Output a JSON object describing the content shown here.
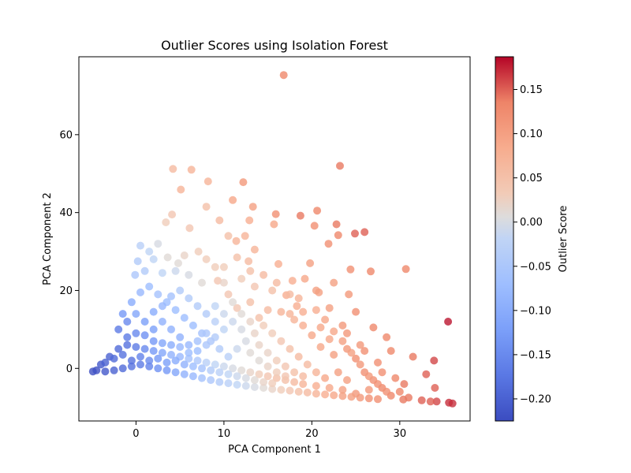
{
  "chart_data": {
    "type": "scatter",
    "title": "Outlier Scores using Isolation Forest",
    "xlabel": "PCA Component 1",
    "ylabel": "PCA Component 2",
    "xlim": [
      -6.5,
      38
    ],
    "ylim": [
      -13.5,
      80
    ],
    "xticks": [
      0,
      10,
      20,
      30
    ],
    "yticks": [
      0,
      20,
      40,
      60
    ],
    "grid": false,
    "colorbar": {
      "label": "Outlier Score",
      "colormap": "coolwarm",
      "range": [
        -0.225,
        0.187
      ],
      "ticks": [
        "-0.20",
        "-0.15",
        "-0.10",
        "-0.05",
        "0.00",
        "0.05",
        "0.10",
        "0.15"
      ],
      "tick_values": [
        -0.2,
        -0.15,
        -0.1,
        -0.05,
        0.0,
        0.05,
        0.1,
        0.15
      ]
    },
    "points": [
      [
        16.8,
        75.3,
        0.13
      ],
      [
        23.2,
        52.0,
        0.14
      ],
      [
        4.2,
        51.2,
        0.06
      ],
      [
        6.3,
        51.0,
        0.07
      ],
      [
        12.2,
        47.8,
        0.11
      ],
      [
        5.1,
        45.9,
        0.07
      ],
      [
        8.2,
        48.0,
        0.07
      ],
      [
        11.0,
        43.2,
        0.09
      ],
      [
        13.3,
        41.5,
        0.1
      ],
      [
        15.9,
        39.6,
        0.12
      ],
      [
        18.7,
        39.2,
        0.14
      ],
      [
        20.6,
        40.5,
        0.13
      ],
      [
        22.8,
        37.0,
        0.14
      ],
      [
        20.3,
        36.6,
        0.12
      ],
      [
        24.9,
        34.6,
        0.15
      ],
      [
        26.0,
        35.0,
        0.15
      ],
      [
        23.0,
        34.2,
        0.13
      ],
      [
        21.9,
        32.0,
        0.12
      ],
      [
        19.8,
        27.0,
        0.1
      ],
      [
        24.4,
        25.4,
        0.12
      ],
      [
        26.7,
        24.9,
        0.13
      ],
      [
        30.7,
        25.5,
        0.13
      ],
      [
        35.5,
        12.0,
        0.18
      ],
      [
        33.9,
        2.0,
        0.16
      ],
      [
        8.0,
        41.5,
        0.05
      ],
      [
        9.5,
        38.0,
        0.06
      ],
      [
        12.9,
        38.0,
        0.08
      ],
      [
        15.7,
        37.0,
        0.09
      ],
      [
        3.4,
        37.5,
        0.03
      ],
      [
        6.1,
        36.0,
        0.04
      ],
      [
        4.1,
        39.5,
        0.04
      ],
      [
        10.5,
        34.0,
        0.05
      ],
      [
        12.4,
        34.0,
        0.07
      ],
      [
        11.4,
        32.7,
        0.07
      ],
      [
        13.5,
        30.5,
        0.07
      ],
      [
        12.8,
        27.5,
        0.06
      ],
      [
        16.2,
        26.8,
        0.08
      ],
      [
        17.8,
        22.5,
        0.08
      ],
      [
        19.2,
        23.0,
        0.09
      ],
      [
        20.5,
        20.0,
        0.1
      ],
      [
        22.5,
        22.0,
        0.1
      ],
      [
        24.2,
        19.0,
        0.11
      ],
      [
        17.1,
        18.8,
        0.08
      ],
      [
        18.3,
        16.0,
        0.08
      ],
      [
        20.8,
        19.5,
        0.1
      ],
      [
        22.0,
        15.5,
        0.1
      ],
      [
        23.5,
        11.0,
        0.11
      ],
      [
        25.0,
        14.5,
        0.12
      ],
      [
        27.0,
        10.5,
        0.13
      ],
      [
        28.5,
        8.0,
        0.13
      ],
      [
        29.0,
        4.5,
        0.13
      ],
      [
        31.5,
        3.0,
        0.14
      ],
      [
        33.0,
        -1.5,
        0.15
      ],
      [
        34.0,
        -5.0,
        0.15
      ],
      [
        35.6,
        -8.8,
        0.17
      ],
      [
        36.0,
        -9.0,
        0.17
      ],
      [
        34.2,
        -8.5,
        0.16
      ],
      [
        30.4,
        -8.0,
        0.14
      ],
      [
        32.5,
        -8.2,
        0.15
      ],
      [
        29.0,
        -7.0,
        0.13
      ],
      [
        30.5,
        -4.0,
        0.14
      ],
      [
        28.0,
        -5.0,
        0.13
      ],
      [
        27.0,
        -3.0,
        0.12
      ],
      [
        26.0,
        -1.0,
        0.12
      ],
      [
        25.0,
        2.5,
        0.12
      ],
      [
        24.0,
        5.0,
        0.11
      ],
      [
        22.5,
        3.5,
        0.1
      ],
      [
        21.0,
        5.5,
        0.09
      ],
      [
        20.0,
        8.5,
        0.09
      ],
      [
        19.0,
        11.0,
        0.08
      ],
      [
        18.0,
        12.5,
        0.07
      ],
      [
        16.5,
        14.5,
        0.07
      ],
      [
        15.0,
        15.0,
        0.06
      ],
      [
        14.0,
        13.0,
        0.05
      ],
      [
        13.0,
        17.0,
        0.05
      ],
      [
        11.5,
        15.5,
        0.04
      ],
      [
        10.5,
        19.0,
        0.04
      ],
      [
        9.3,
        22.5,
        0.04
      ],
      [
        9.0,
        26.0,
        0.03
      ],
      [
        8.0,
        28.0,
        0.03
      ],
      [
        7.1,
        30.0,
        0.03
      ],
      [
        5.5,
        29.0,
        0.02
      ],
      [
        4.8,
        27.0,
        0.01
      ],
      [
        3.6,
        28.5,
        0.01
      ],
      [
        2.5,
        32.0,
        0.0
      ],
      [
        1.5,
        30.0,
        -0.02
      ],
      [
        0.5,
        31.5,
        -0.03
      ],
      [
        2.0,
        28.0,
        -0.02
      ],
      [
        0.2,
        27.5,
        -0.04
      ],
      [
        -0.1,
        24.0,
        -0.05
      ],
      [
        1.0,
        25.0,
        -0.04
      ],
      [
        3.0,
        24.5,
        -0.02
      ],
      [
        4.5,
        25.0,
        -0.01
      ],
      [
        6.0,
        24.0,
        0.0
      ],
      [
        7.5,
        22.0,
        0.01
      ],
      [
        10.0,
        22.0,
        0.02
      ],
      [
        12.0,
        23.0,
        0.03
      ],
      [
        13.5,
        21.0,
        0.04
      ],
      [
        15.5,
        20.0,
        0.05
      ],
      [
        17.5,
        19.0,
        0.06
      ],
      [
        18.5,
        18.0,
        0.07
      ],
      [
        20.5,
        15.0,
        0.08
      ],
      [
        21.5,
        12.5,
        0.09
      ],
      [
        22.5,
        9.5,
        0.09
      ],
      [
        23.5,
        7.0,
        0.1
      ],
      [
        24.5,
        4.0,
        0.1
      ],
      [
        25.5,
        1.0,
        0.11
      ],
      [
        26.5,
        -2.0,
        0.11
      ],
      [
        27.5,
        -4.0,
        0.12
      ],
      [
        28.5,
        -6.0,
        0.12
      ],
      [
        26.5,
        -5.5,
        0.11
      ],
      [
        25.0,
        -6.5,
        0.11
      ],
      [
        23.5,
        -5.5,
        0.1
      ],
      [
        22.0,
        -5.0,
        0.09
      ],
      [
        24.0,
        -3.0,
        0.1
      ],
      [
        23.0,
        -1.0,
        0.1
      ],
      [
        21.5,
        -2.5,
        0.09
      ],
      [
        20.5,
        -4.5,
        0.08
      ],
      [
        19.0,
        -4.0,
        0.07
      ],
      [
        18.0,
        -3.5,
        0.06
      ],
      [
        17.0,
        -3.0,
        0.05
      ],
      [
        16.0,
        -2.5,
        0.05
      ],
      [
        15.0,
        -2.0,
        0.04
      ],
      [
        14.0,
        -1.5,
        0.03
      ],
      [
        13.0,
        -1.0,
        0.02
      ],
      [
        12.0,
        -0.5,
        0.01
      ],
      [
        11.0,
        0.0,
        0.0
      ],
      [
        10.0,
        0.5,
        -0.01
      ],
      [
        9.0,
        1.0,
        -0.02
      ],
      [
        8.0,
        1.5,
        -0.03
      ],
      [
        7.0,
        2.0,
        -0.05
      ],
      [
        6.0,
        2.5,
        -0.06
      ],
      [
        5.0,
        3.0,
        -0.08
      ],
      [
        4.0,
        3.5,
        -0.09
      ],
      [
        3.0,
        4.0,
        -0.11
      ],
      [
        2.0,
        4.5,
        -0.13
      ],
      [
        1.0,
        5.0,
        -0.15
      ],
      [
        0.0,
        5.5,
        -0.17
      ],
      [
        -1.0,
        6.0,
        -0.18
      ],
      [
        -2.0,
        5.0,
        -0.19
      ],
      [
        -3.0,
        3.0,
        -0.2
      ],
      [
        -4.0,
        1.0,
        -0.21
      ],
      [
        -4.9,
        -0.8,
        -0.22
      ],
      [
        -4.5,
        -0.5,
        -0.22
      ],
      [
        -3.5,
        -0.8,
        -0.21
      ],
      [
        -2.5,
        -0.5,
        -0.2
      ],
      [
        -1.5,
        0.0,
        -0.19
      ],
      [
        -0.5,
        0.5,
        -0.18
      ],
      [
        0.5,
        1.0,
        -0.17
      ],
      [
        1.5,
        0.5,
        -0.16
      ],
      [
        2.5,
        0.0,
        -0.14
      ],
      [
        3.5,
        -0.5,
        -0.13
      ],
      [
        4.5,
        -1.0,
        -0.11
      ],
      [
        5.5,
        -1.5,
        -0.09
      ],
      [
        6.5,
        -2.0,
        -0.08
      ],
      [
        7.5,
        -2.5,
        -0.06
      ],
      [
        8.5,
        -3.0,
        -0.05
      ],
      [
        9.5,
        -3.5,
        -0.04
      ],
      [
        10.5,
        -3.8,
        -0.03
      ],
      [
        11.5,
        -4.2,
        -0.02
      ],
      [
        12.5,
        -4.5,
        -0.01
      ],
      [
        13.5,
        -4.8,
        0.0
      ],
      [
        14.5,
        -5.0,
        0.01
      ],
      [
        15.5,
        -5.3,
        0.02
      ],
      [
        16.5,
        -5.5,
        0.03
      ],
      [
        17.5,
        -5.7,
        0.04
      ],
      [
        18.5,
        -6.0,
        0.05
      ],
      [
        19.5,
        -6.2,
        0.06
      ],
      [
        20.5,
        -6.5,
        0.07
      ],
      [
        21.5,
        -6.7,
        0.08
      ],
      [
        22.5,
        -6.9,
        0.09
      ],
      [
        23.5,
        -7.1,
        0.1
      ],
      [
        24.5,
        -7.3,
        0.1
      ],
      [
        25.5,
        -7.5,
        0.11
      ],
      [
        26.5,
        -7.7,
        0.12
      ],
      [
        27.5,
        -7.9,
        0.12
      ],
      [
        2.0,
        10.0,
        -0.12
      ],
      [
        1.0,
        12.0,
        -0.12
      ],
      [
        0.0,
        14.0,
        -0.11
      ],
      [
        -1.0,
        12.0,
        -0.15
      ],
      [
        -2.0,
        10.0,
        -0.17
      ],
      [
        -1.5,
        14.0,
        -0.13
      ],
      [
        -0.5,
        17.0,
        -0.1
      ],
      [
        0.5,
        19.5,
        -0.08
      ],
      [
        1.5,
        21.0,
        -0.07
      ],
      [
        2.5,
        19.0,
        -0.06
      ],
      [
        3.5,
        17.0,
        -0.07
      ],
      [
        4.5,
        15.0,
        -0.07
      ],
      [
        5.5,
        13.0,
        -0.07
      ],
      [
        6.5,
        11.0,
        -0.07
      ],
      [
        7.5,
        9.0,
        -0.06
      ],
      [
        8.5,
        7.0,
        -0.05
      ],
      [
        9.5,
        5.0,
        -0.04
      ],
      [
        10.5,
        3.0,
        -0.03
      ],
      [
        11.5,
        5.0,
        -0.01
      ],
      [
        12.5,
        7.0,
        0.0
      ],
      [
        13.5,
        9.0,
        0.02
      ],
      [
        14.5,
        11.0,
        0.03
      ],
      [
        15.5,
        9.0,
        0.03
      ],
      [
        16.5,
        7.0,
        0.04
      ],
      [
        17.5,
        5.0,
        0.05
      ],
      [
        18.5,
        3.0,
        0.06
      ],
      [
        19.5,
        1.0,
        0.06
      ],
      [
        20.5,
        -1.0,
        0.07
      ],
      [
        3.0,
        12.0,
        -0.09
      ],
      [
        4.0,
        10.0,
        -0.09
      ],
      [
        5.0,
        8.0,
        -0.09
      ],
      [
        6.0,
        6.0,
        -0.08
      ],
      [
        7.0,
        4.5,
        -0.07
      ],
      [
        8.0,
        6.0,
        -0.05
      ],
      [
        9.0,
        8.0,
        -0.04
      ],
      [
        10.0,
        10.0,
        -0.02
      ],
      [
        11.0,
        12.0,
        -0.01
      ],
      [
        12.0,
        10.0,
        0.0
      ],
      [
        13.0,
        12.0,
        0.02
      ],
      [
        14.0,
        6.0,
        0.02
      ],
      [
        15.0,
        4.0,
        0.02
      ],
      [
        16.0,
        2.0,
        0.03
      ],
      [
        17.0,
        0.5,
        0.04
      ],
      [
        18.0,
        -1.0,
        0.05
      ],
      [
        -3.5,
        1.5,
        -0.2
      ],
      [
        -2.5,
        2.5,
        -0.19
      ],
      [
        -1.5,
        3.5,
        -0.18
      ],
      [
        -0.5,
        2.0,
        -0.18
      ],
      [
        0.5,
        3.0,
        -0.16
      ],
      [
        1.5,
        2.0,
        -0.15
      ],
      [
        2.5,
        2.5,
        -0.13
      ],
      [
        3.5,
        1.5,
        -0.12
      ],
      [
        4.5,
        2.0,
        -0.1
      ],
      [
        5.5,
        1.0,
        -0.09
      ],
      [
        6.5,
        0.5,
        -0.07
      ],
      [
        7.5,
        0.0,
        -0.06
      ],
      [
        8.5,
        -0.5,
        -0.04
      ],
      [
        9.5,
        -1.0,
        -0.03
      ],
      [
        10.5,
        -1.5,
        -0.02
      ],
      [
        11.5,
        -2.0,
        -0.01
      ],
      [
        12.5,
        -2.5,
        0.0
      ],
      [
        13.5,
        -3.0,
        0.01
      ],
      [
        14.5,
        -3.5,
        0.02
      ],
      [
        15.5,
        -3.8,
        0.03
      ],
      [
        -1.0,
        8.0,
        -0.17
      ],
      [
        0.0,
        9.0,
        -0.15
      ],
      [
        1.0,
        8.5,
        -0.14
      ],
      [
        2.0,
        7.0,
        -0.13
      ],
      [
        3.0,
        6.5,
        -0.11
      ],
      [
        4.0,
        6.0,
        -0.1
      ],
      [
        5.0,
        5.5,
        -0.08
      ],
      [
        6.0,
        4.0,
        -0.07
      ],
      [
        7.0,
        7.0,
        -0.06
      ],
      [
        8.0,
        9.0,
        -0.05
      ],
      [
        9.0,
        12.0,
        -0.03
      ],
      [
        10.0,
        14.0,
        -0.01
      ],
      [
        11.0,
        17.0,
        0.01
      ],
      [
        12.0,
        14.0,
        0.01
      ],
      [
        13.0,
        4.0,
        0.01
      ],
      [
        14.0,
        2.0,
        0.01
      ],
      [
        15.0,
        0.5,
        0.02
      ],
      [
        16.0,
        -1.0,
        0.03
      ],
      [
        17.0,
        -2.0,
        0.04
      ],
      [
        19.0,
        -2.0,
        0.06
      ],
      [
        2.0,
        14.5,
        -0.1
      ],
      [
        3.0,
        16.0,
        -0.08
      ],
      [
        4.0,
        18.5,
        -0.06
      ],
      [
        5.0,
        20.0,
        -0.04
      ],
      [
        6.0,
        18.0,
        -0.04
      ],
      [
        7.0,
        16.0,
        -0.04
      ],
      [
        8.0,
        14.0,
        -0.04
      ],
      [
        9.0,
        16.0,
        -0.02
      ],
      [
        10.0,
        26.0,
        0.03
      ],
      [
        11.5,
        28.5,
        0.05
      ],
      [
        13.0,
        25.0,
        0.05
      ],
      [
        14.5,
        24.0,
        0.06
      ],
      [
        16.0,
        22.0,
        0.06
      ],
      [
        17.5,
        14.0,
        0.07
      ],
      [
        19.0,
        14.5,
        0.08
      ],
      [
        21.0,
        10.5,
        0.09
      ],
      [
        22.0,
        7.5,
        0.09
      ],
      [
        24.0,
        9.0,
        0.11
      ],
      [
        25.5,
        6.0,
        0.11
      ],
      [
        26.0,
        4.5,
        0.12
      ],
      [
        27.5,
        1.5,
        0.12
      ],
      [
        28.0,
        -1.0,
        0.12
      ],
      [
        29.5,
        -2.5,
        0.13
      ],
      [
        30.0,
        -6.0,
        0.13
      ],
      [
        31.0,
        -7.5,
        0.14
      ],
      [
        33.5,
        -8.5,
        0.15
      ]
    ]
  }
}
